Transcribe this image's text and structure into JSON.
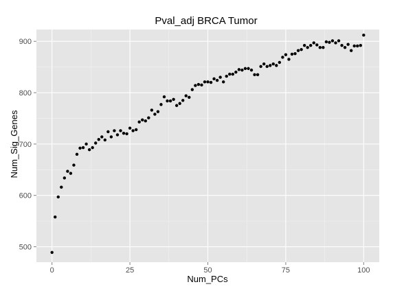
{
  "chart_data": {
    "type": "scatter",
    "title": "Pval_adj BRCA Tumor",
    "xlabel": "Num_PCs",
    "ylabel": "Num_Sig_Genes",
    "xlim": [
      -5,
      105
    ],
    "ylim": [
      470,
      923
    ],
    "x_ticks": [
      0,
      25,
      50,
      75,
      100
    ],
    "y_ticks": [
      500,
      600,
      700,
      800,
      900
    ],
    "grid": true,
    "legend": "none",
    "colors": {
      "panel_bg": "#e5e5e5",
      "grid_major": "#ffffff",
      "grid_minor": "#f2f2f2",
      "point": "#000000",
      "tick_label": "#4d4d4d"
    },
    "x": [
      0,
      1,
      2,
      3,
      4,
      5,
      6,
      7,
      8,
      9,
      10,
      11,
      12,
      13,
      14,
      15,
      16,
      17,
      18,
      19,
      20,
      21,
      22,
      23,
      24,
      25,
      26,
      27,
      28,
      29,
      30,
      31,
      32,
      33,
      34,
      35,
      36,
      37,
      38,
      39,
      40,
      41,
      42,
      43,
      44,
      45,
      46,
      47,
      48,
      49,
      50,
      51,
      52,
      53,
      54,
      55,
      56,
      57,
      58,
      59,
      60,
      61,
      62,
      63,
      64,
      65,
      66,
      67,
      68,
      69,
      70,
      71,
      72,
      73,
      74,
      75,
      76,
      77,
      78,
      79,
      80,
      81,
      82,
      83,
      84,
      85,
      86,
      87,
      88,
      89,
      90,
      91,
      92,
      93,
      94,
      95,
      96,
      97,
      98,
      99,
      100
    ],
    "y": [
      489,
      558,
      597,
      616,
      634,
      647,
      643,
      659,
      680,
      692,
      693,
      700,
      689,
      693,
      702,
      709,
      714,
      708,
      724,
      714,
      726,
      718,
      726,
      721,
      720,
      731,
      726,
      728,
      743,
      747,
      745,
      751,
      766,
      758,
      763,
      777,
      792,
      784,
      784,
      787,
      775,
      779,
      785,
      794,
      791,
      806,
      814,
      816,
      815,
      821,
      821,
      820,
      827,
      824,
      830,
      821,
      832,
      836,
      836,
      840,
      845,
      844,
      847,
      847,
      844,
      835,
      835,
      851,
      856,
      851,
      853,
      856,
      853,
      859,
      869,
      874,
      865,
      875,
      876,
      882,
      884,
      892,
      888,
      892,
      897,
      893,
      888,
      888,
      899,
      898,
      901,
      897,
      901,
      892,
      888,
      894,
      882,
      891,
      891,
      892,
      912
    ]
  }
}
